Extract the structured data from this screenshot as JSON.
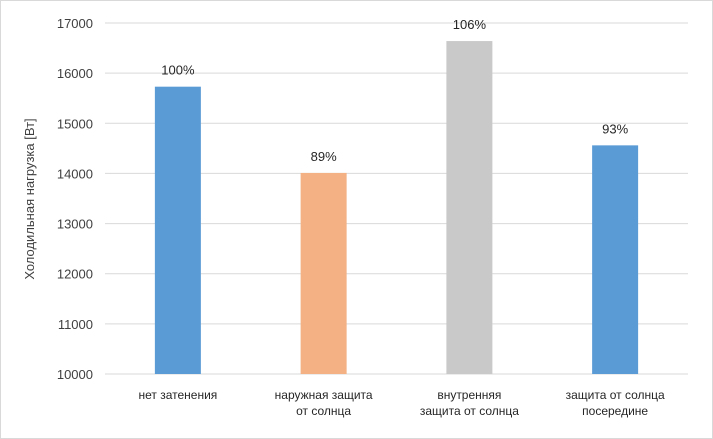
{
  "chart_data": {
    "type": "bar",
    "title": "",
    "xlabel": "",
    "ylabel": "Холодильная нагрузка [Вт]",
    "ylim": [
      10000,
      17000
    ],
    "yticks": [
      10000,
      11000,
      12000,
      13000,
      14000,
      15000,
      16000,
      17000
    ],
    "grid": true,
    "categories": [
      [
        "нет затенения"
      ],
      [
        "наружная защита",
        "от солнца"
      ],
      [
        "внутренняя",
        "защита от солнца"
      ],
      [
        "защита от солнца",
        "посередине"
      ]
    ],
    "values": [
      15730,
      14010,
      16640,
      14560
    ],
    "data_labels": [
      "100%",
      "89%",
      "106%",
      "93%"
    ],
    "colors": [
      "#5b9bd5",
      "#f4b183",
      "#c9c9c9",
      "#5b9bd5"
    ]
  }
}
